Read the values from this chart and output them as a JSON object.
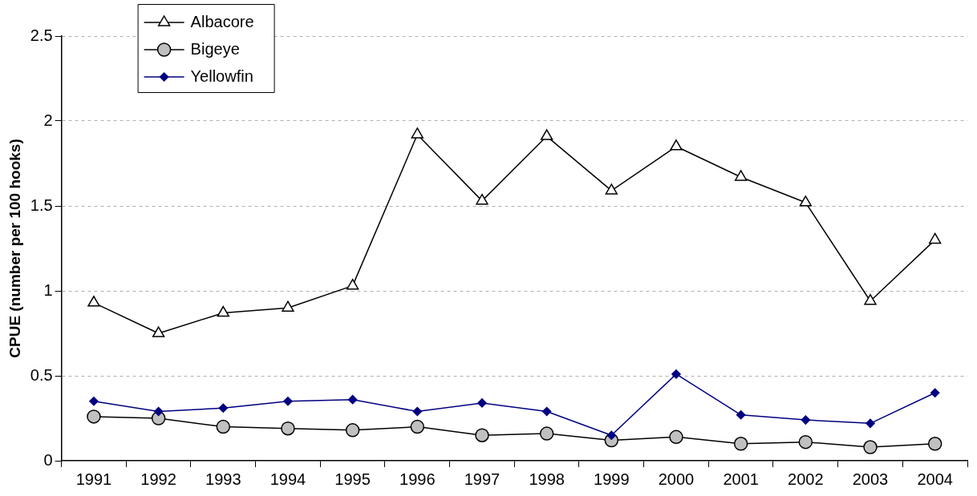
{
  "chart_data": {
    "type": "line",
    "ylabel": "CPUE (number per 100 hooks)",
    "categories": [
      "1991",
      "1992",
      "1993",
      "1994",
      "1995",
      "1996",
      "1997",
      "1998",
      "1999",
      "2000",
      "2001",
      "2002",
      "2003",
      "2004"
    ],
    "series": [
      {
        "name": "Albacore",
        "color": "#000000",
        "marker": "triangle",
        "values": [
          0.93,
          0.75,
          0.87,
          0.9,
          1.03,
          1.92,
          1.53,
          1.91,
          1.59,
          1.85,
          1.67,
          1.52,
          0.94,
          1.3
        ]
      },
      {
        "name": "Bigeye",
        "color": "#000000",
        "marker": "circle",
        "values": [
          0.26,
          0.25,
          0.2,
          0.19,
          0.18,
          0.2,
          0.15,
          0.16,
          0.12,
          0.14,
          0.1,
          0.11,
          0.08,
          0.1
        ]
      },
      {
        "name": "Yellowfin",
        "color": "#000080",
        "marker": "diamond",
        "values": [
          0.35,
          0.29,
          0.31,
          0.35,
          0.36,
          0.29,
          0.34,
          0.29,
          0.15,
          0.51,
          0.27,
          0.24,
          0.22,
          0.4
        ]
      }
    ],
    "ylim": [
      0,
      2.5
    ],
    "yticks": [
      0,
      0.5,
      1,
      1.5,
      2,
      2.5
    ],
    "grid": "y",
    "legend": "top left"
  }
}
